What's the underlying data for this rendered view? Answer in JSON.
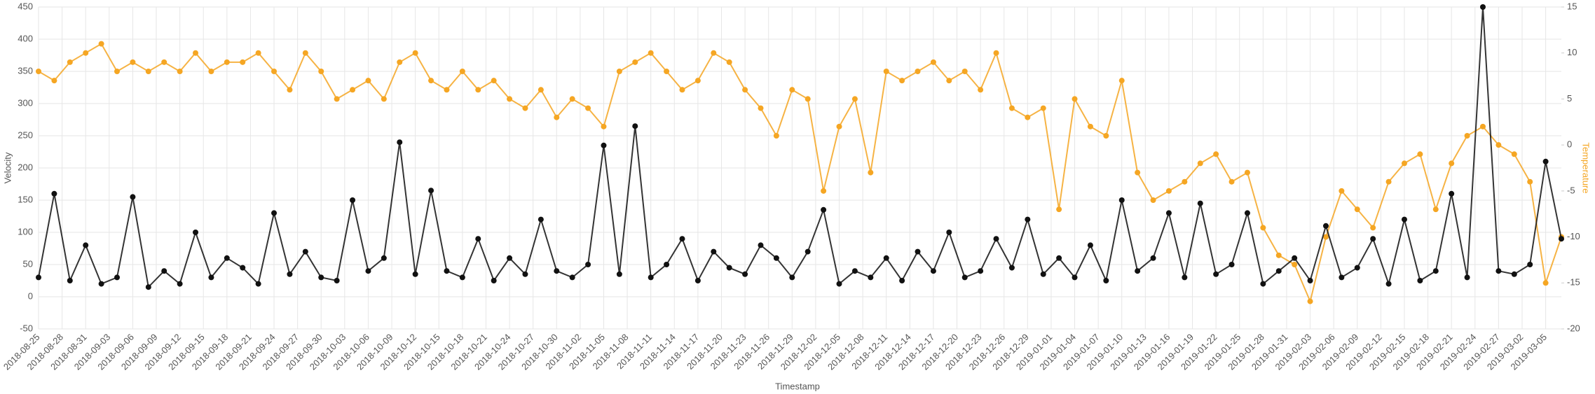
{
  "chart_data": {
    "type": "line",
    "x_label": "Timestamp",
    "y_label": "Velocity",
    "y2_label": "Temperature",
    "y2_label_color": "#f5a623",
    "x": [
      "2018-08-25",
      "2018-08-27",
      "2018-08-29",
      "2018-08-31",
      "2018-09-02",
      "2018-09-04",
      "2018-09-06",
      "2018-09-08",
      "2018-09-10",
      "2018-09-12",
      "2018-09-14",
      "2018-09-16",
      "2018-09-18",
      "2018-09-20",
      "2018-09-22",
      "2018-09-24",
      "2018-09-26",
      "2018-09-28",
      "2018-09-30",
      "2018-10-02",
      "2018-10-04",
      "2018-10-06",
      "2018-10-08",
      "2018-10-10",
      "2018-10-12",
      "2018-10-14",
      "2018-10-16",
      "2018-10-18",
      "2018-10-20",
      "2018-10-22",
      "2018-10-24",
      "2018-10-26",
      "2018-10-28",
      "2018-10-30",
      "2018-11-01",
      "2018-11-03",
      "2018-11-05",
      "2018-11-07",
      "2018-11-09",
      "2018-11-11",
      "2018-11-13",
      "2018-11-15",
      "2018-11-17",
      "2018-11-19",
      "2018-11-21",
      "2018-11-23",
      "2018-11-25",
      "2018-11-27",
      "2018-11-29",
      "2018-12-01",
      "2018-12-03",
      "2018-12-05",
      "2018-12-07",
      "2018-12-09",
      "2018-12-11",
      "2018-12-13",
      "2018-12-15",
      "2018-12-17",
      "2018-12-19",
      "2018-12-21",
      "2018-12-23",
      "2018-12-25",
      "2018-12-27",
      "2018-12-29",
      "2018-12-31",
      "2019-01-02",
      "2019-01-04",
      "2019-01-06",
      "2019-01-08",
      "2019-01-10",
      "2019-01-12",
      "2019-01-14",
      "2019-01-16",
      "2019-01-18",
      "2019-01-20",
      "2019-01-22",
      "2019-01-24",
      "2019-01-26",
      "2019-01-28",
      "2019-01-30",
      "2019-02-01",
      "2019-02-03",
      "2019-02-05",
      "2019-02-07",
      "2019-02-09",
      "2019-02-11",
      "2019-02-13",
      "2019-02-15",
      "2019-02-17",
      "2019-02-19",
      "2019-02-21",
      "2019-02-23",
      "2019-02-25",
      "2019-02-27",
      "2019-03-01",
      "2019-03-03",
      "2019-03-05",
      "2019-03-07"
    ],
    "series": [
      {
        "color": "#111111",
        "values": [
          30,
          160,
          25,
          80,
          20,
          30,
          155,
          15,
          40,
          20,
          100,
          30,
          60,
          45,
          20,
          130,
          35,
          70,
          30,
          25,
          150,
          40,
          60,
          240,
          35,
          165,
          40,
          30,
          90,
          25,
          60,
          35,
          120,
          40,
          30,
          50,
          235,
          35,
          265,
          30,
          50,
          90,
          25,
          70,
          45,
          35,
          80,
          60,
          30,
          70,
          135,
          20,
          40,
          30,
          60,
          25,
          70,
          40,
          100,
          30,
          40,
          90,
          45,
          120,
          35,
          60,
          30,
          80,
          25,
          150,
          40,
          60,
          130,
          30,
          145,
          35,
          50,
          130,
          20,
          40,
          60,
          25,
          110,
          30,
          45,
          90,
          20,
          120,
          25,
          40,
          160,
          30,
          450,
          40,
          35,
          50,
          210,
          90
        ]
      },
      {
        "color": "#f5a623",
        "axis": "y2",
        "values": [
          8,
          7,
          9,
          10,
          11,
          8,
          9,
          8,
          9,
          8,
          10,
          8,
          9,
          9,
          10,
          8,
          6,
          10,
          8,
          5,
          6,
          7,
          5,
          9,
          10,
          7,
          6,
          8,
          6,
          7,
          5,
          4,
          6,
          3,
          5,
          4,
          2,
          8,
          9,
          10,
          8,
          6,
          7,
          10,
          9,
          6,
          4,
          1,
          6,
          5,
          -5,
          2,
          5,
          -3,
          8,
          7,
          8,
          9,
          7,
          8,
          6,
          10,
          4,
          3,
          4,
          -7,
          5,
          2,
          1,
          7,
          -3,
          -6,
          -5,
          -4,
          -2,
          -1,
          -4,
          -3,
          -9,
          -12,
          -13,
          -17,
          -10,
          -5,
          -7,
          -9,
          -4,
          -2,
          -1,
          -7,
          -2,
          1,
          2,
          0,
          -1,
          -4,
          -15,
          -10
        ]
      }
    ],
    "xlim": [
      "2018-08-25",
      "2019-03-07"
    ],
    "xticks": [
      "2018-08-25",
      "2018-08-28",
      "2018-08-31",
      "2018-09-03",
      "2018-09-06",
      "2018-09-09",
      "2018-09-12",
      "2018-09-15",
      "2018-09-18",
      "2018-09-21",
      "2018-09-24",
      "2018-09-27",
      "2018-09-30",
      "2018-10-03",
      "2018-10-06",
      "2018-10-09",
      "2018-10-12",
      "2018-10-15",
      "2018-10-18",
      "2018-10-21",
      "2018-10-24",
      "2018-10-27",
      "2018-10-30",
      "2018-11-02",
      "2018-11-05",
      "2018-11-08",
      "2018-11-11",
      "2018-11-14",
      "2018-11-17",
      "2018-11-20",
      "2018-11-23",
      "2018-11-26",
      "2018-11-29",
      "2018-12-02",
      "2018-12-05",
      "2018-12-08",
      "2018-12-11",
      "2018-12-14",
      "2018-12-17",
      "2018-12-20",
      "2018-12-23",
      "2018-12-26",
      "2018-12-29",
      "2019-01-01",
      "2019-01-04",
      "2019-01-07",
      "2019-01-10",
      "2019-01-13",
      "2019-01-16",
      "2019-01-19",
      "2019-01-22",
      "2019-01-25",
      "2019-01-28",
      "2019-01-31",
      "2019-02-03",
      "2019-02-06",
      "2019-02-09",
      "2019-02-12",
      "2019-02-15",
      "2019-02-18",
      "2019-02-21",
      "2019-02-24",
      "2019-02-27",
      "2019-03-02",
      "2019-03-05"
    ],
    "ylim": [
      -50,
      450
    ],
    "yticks": [
      -50,
      0,
      50,
      100,
      150,
      200,
      250,
      300,
      350,
      400,
      450
    ],
    "y2lim": [
      -20,
      15
    ],
    "y2ticks": [
      -20,
      -15,
      -10,
      -5,
      0,
      5,
      10,
      15
    ],
    "grid": true
  }
}
